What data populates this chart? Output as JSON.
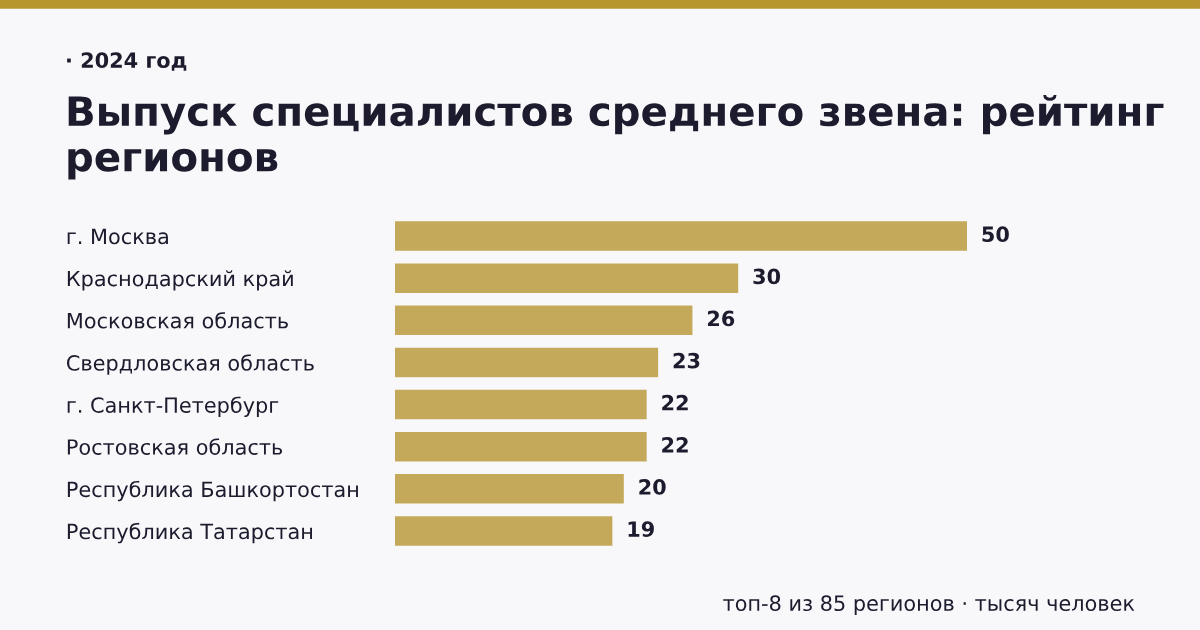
{
  "chart_data": {
    "type": "bar",
    "orientation": "horizontal",
    "title": "Выпуск специалистов среднего звена: рейтинг регионов",
    "subtitle": "· 2024 год",
    "categories": [
      "г. Москва",
      "Краснодарский край",
      "Московская область",
      "Свердловская область",
      "г. Санкт-Петербург",
      "Ростовская область",
      "Республика Башкортостан",
      "Республика Татарстан"
    ],
    "values": [
      50,
      30,
      26,
      23,
      22,
      22,
      20,
      19
    ],
    "color": "#c5a95b",
    "data_labels": true,
    "grid": false,
    "legend": false,
    "annotations": [
      "топ-8 из 85 регионов · тысяч человек"
    ]
  }
}
